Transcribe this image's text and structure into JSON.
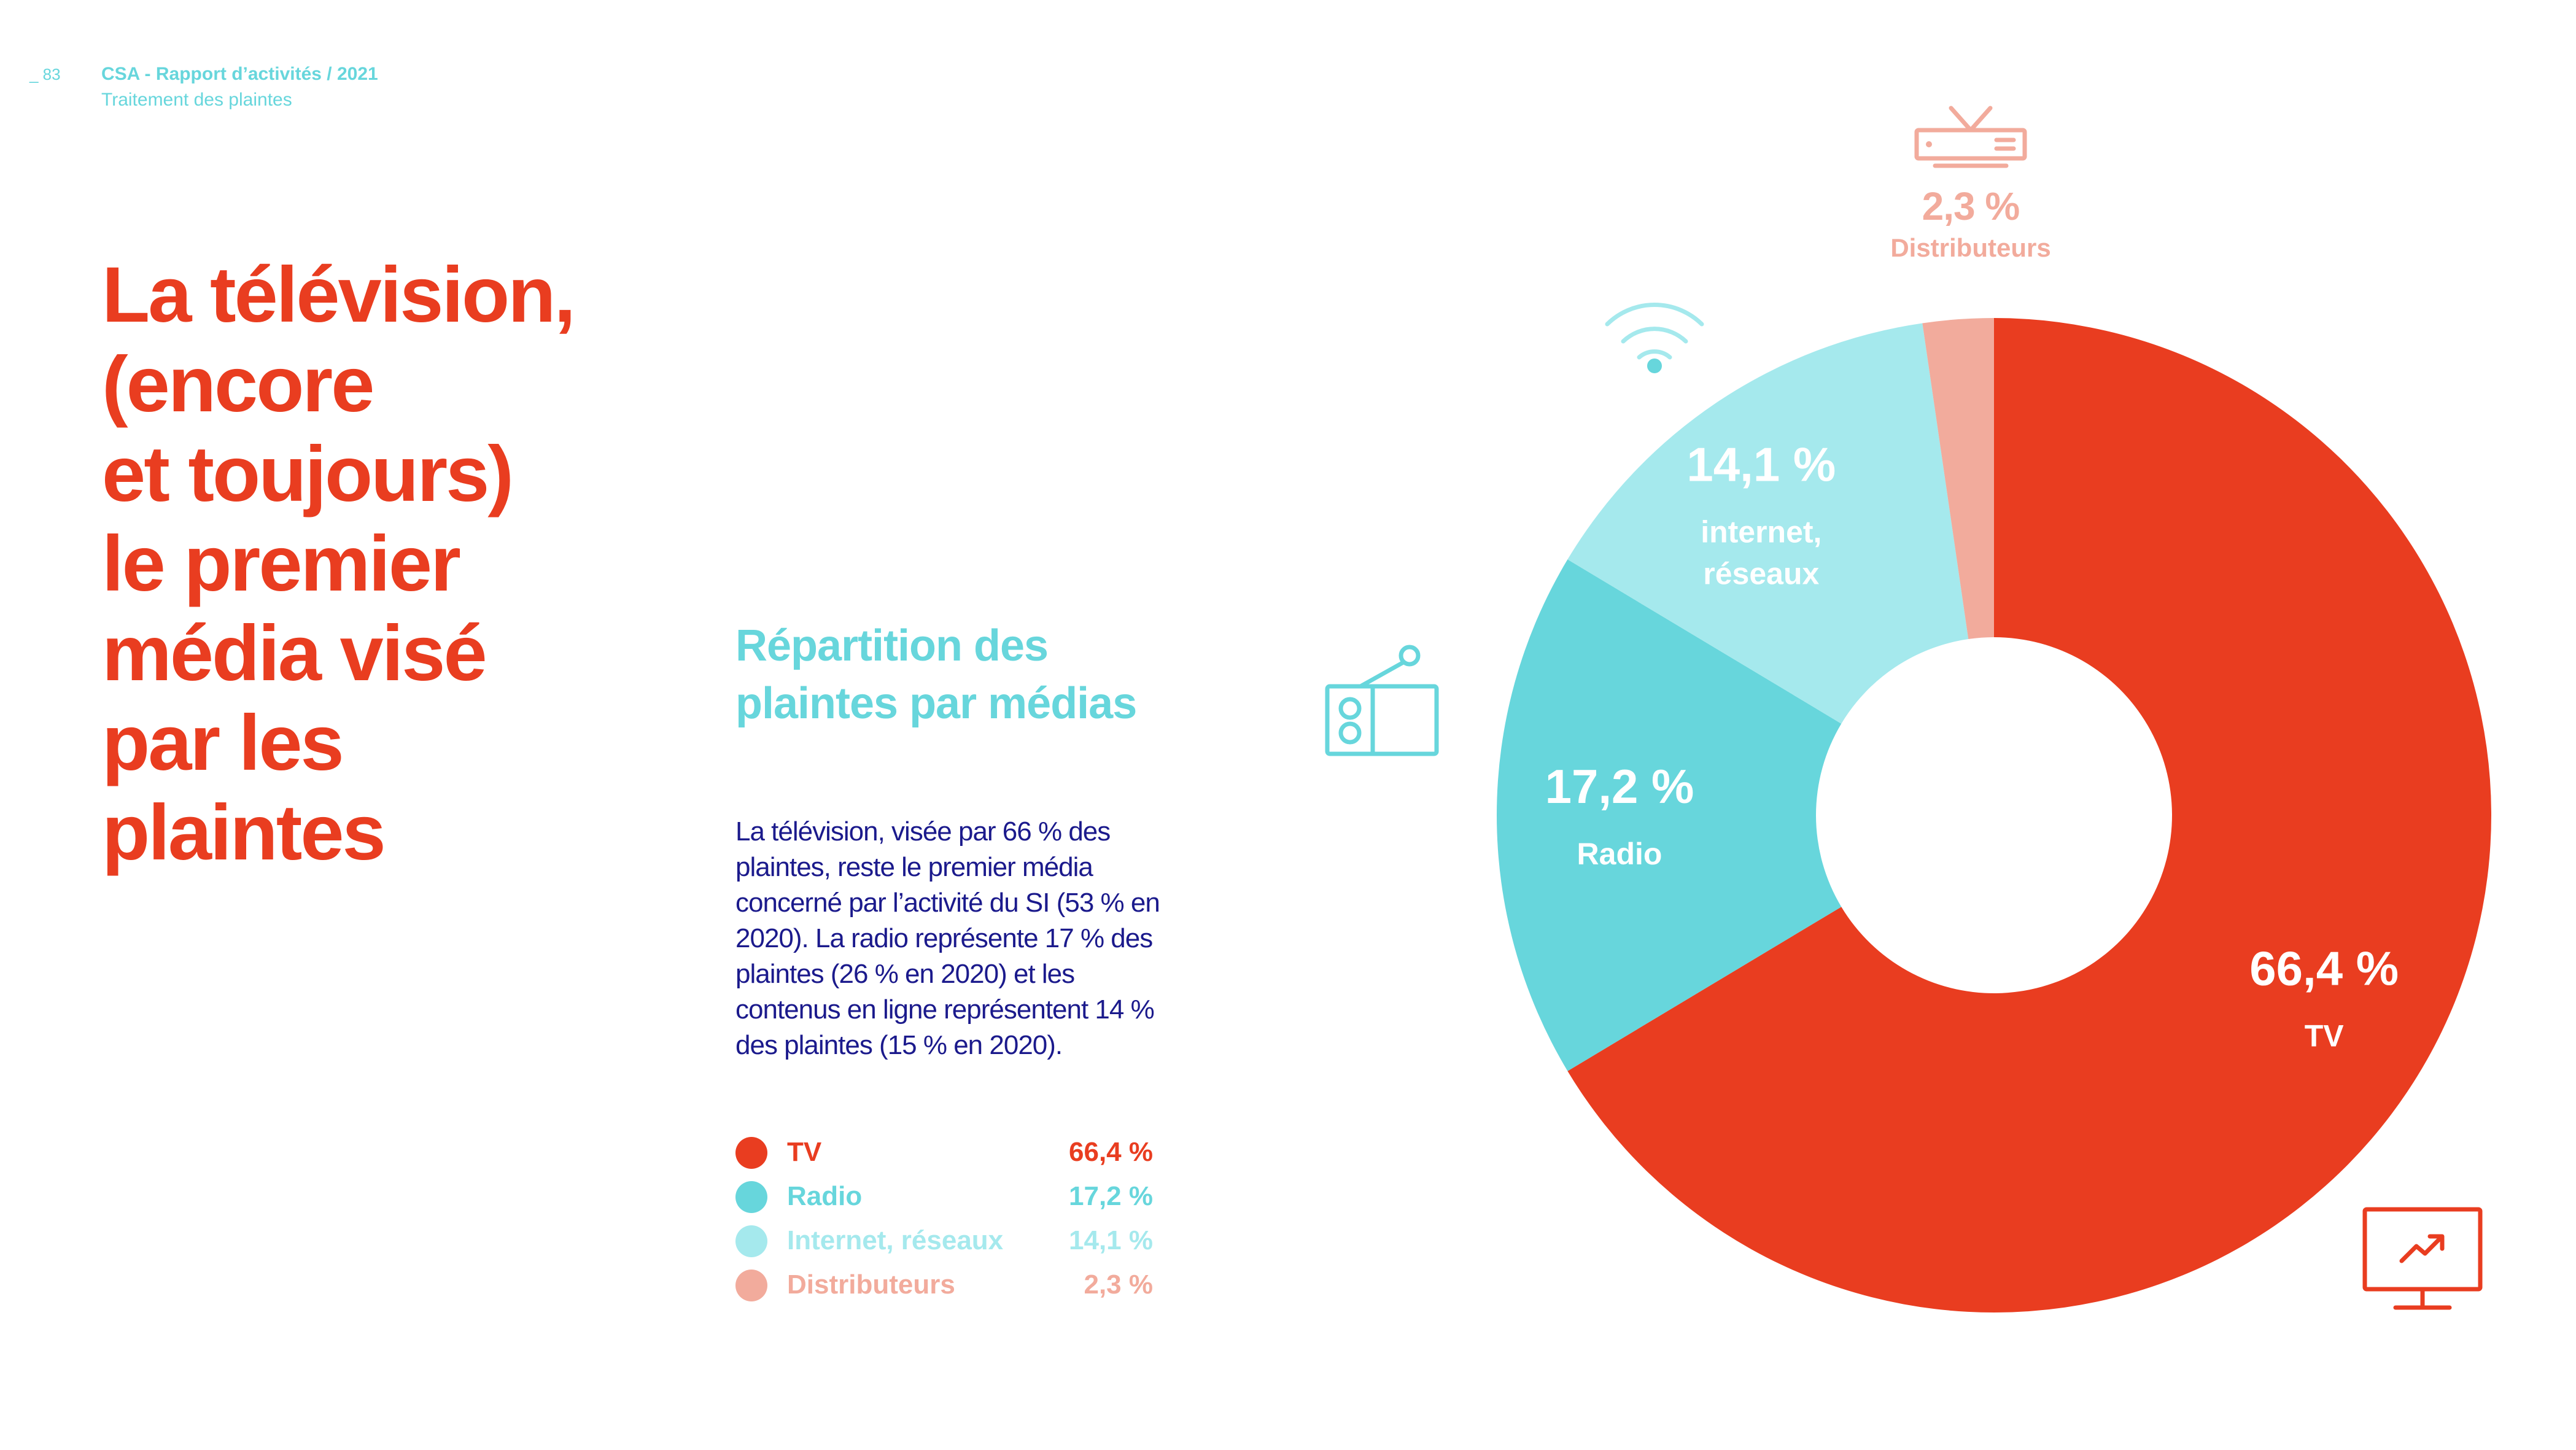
{
  "header": {
    "page_number": "_ 83",
    "title": "CSA - Rapport d’activités / 2021",
    "subtitle": "Traitement des plaintes"
  },
  "headline": {
    "lines": [
      "La télévision,",
      "(encore",
      "et toujours)",
      "le premier",
      "média visé",
      "par les",
      "plaintes"
    ]
  },
  "section": {
    "title_lines": [
      "Répartition des",
      "plaintes par médias"
    ],
    "body": "La télévision, visée par 66 % des plaintes, reste le premier média concerné par l’activité du SI (53 % en 2020). La radio représente 17 % des plaintes (26 % en 2020) et les contenus en ligne représentent 14 % des plaintes (15 % en 2020)."
  },
  "legend": {
    "items": [
      {
        "label": "TV",
        "value": "66,4  %",
        "color": "#e93d20"
      },
      {
        "label": "Radio",
        "value": "17,2 %",
        "color": "#67d6dc"
      },
      {
        "label": "Internet, réseaux",
        "value": "14,1  %",
        "color": "#a5e9ed"
      },
      {
        "label": "Distributeurs",
        "value": "2,3 %",
        "color": "#f2ab9c"
      }
    ]
  },
  "icons": {
    "distributeurs": "set-top-box-icon",
    "internet": "wifi-icon",
    "radio": "radio-icon",
    "tv": "tv-trend-icon"
  },
  "chart_data": {
    "type": "pie",
    "donut": true,
    "slices": [
      {
        "label": "TV",
        "value": 66.4,
        "value_label": "66,4 %",
        "color": "#e93d20"
      },
      {
        "label": "Radio",
        "value": 17.2,
        "value_label": "17,2 %",
        "color": "#67d6dc"
      },
      {
        "label": "internet, réseaux",
        "label_lines": [
          "internet,",
          "réseaux"
        ],
        "value": 14.1,
        "value_label": "14,1 %",
        "color": "#a5e9ed"
      },
      {
        "label": "Distributeurs",
        "value": 2.3,
        "value_label": "2,3 %",
        "color": "#f2ab9c"
      }
    ],
    "start": "top",
    "direction": "clockwise"
  }
}
